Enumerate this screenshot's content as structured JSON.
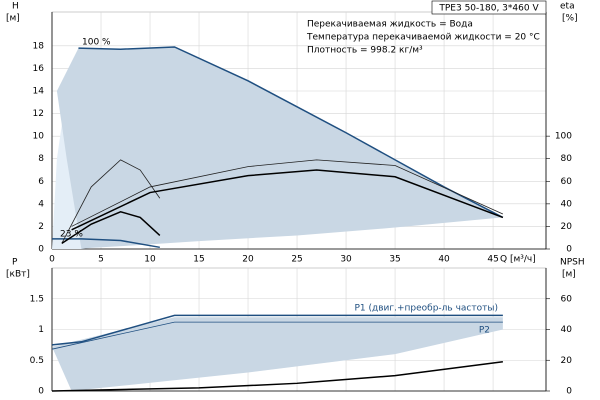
{
  "chart_data": [
    {
      "type": "line",
      "title": "TPE3 50-180, 3*460 V",
      "notes": [
        "Перекачиваемая жидкость = Вода",
        "Температура перекачиваемой жидкости = 20 °C",
        "Плотность = 998.2 кг/м³"
      ],
      "ylabel": "H",
      "yunit": "[м]",
      "y2label": "eta",
      "y2unit": "[%]",
      "xlabel": "Q [м³/ч]",
      "xlim": [
        0,
        50.4
      ],
      "xticks": [
        0,
        5,
        10,
        15,
        20,
        25,
        30,
        35,
        40,
        45
      ],
      "ylim": [
        0,
        21
      ],
      "yticks": [
        0,
        2,
        4,
        6,
        8,
        10,
        12,
        14,
        16,
        18
      ],
      "y2lim": [
        0,
        210
      ],
      "y2ticks": [
        0,
        20,
        40,
        60,
        80,
        100
      ],
      "grid": true,
      "annotations": [
        "100 %",
        "23 %"
      ],
      "areas": [
        {
          "color": "#e4eef7",
          "x": [
            0,
            0.5,
            1.5,
            2.7,
            4,
            3
          ],
          "y": [
            0,
            8,
            14,
            17.8,
            17.8,
            0
          ]
        },
        {
          "color": "#c9d7e4",
          "x": [
            2.7,
            7,
            12.5,
            20,
            30,
            40,
            46,
            35,
            25,
            15,
            8,
            4,
            3,
            1.5,
            0.5
          ],
          "y": [
            17.8,
            17.7,
            17.9,
            14.9,
            10.3,
            5.5,
            2.8,
            1.9,
            1.2,
            0.7,
            0.3,
            0.1,
            0,
            8,
            14
          ]
        }
      ],
      "series": [
        {
          "color": "#1f4f80",
          "width": 1.5,
          "x": [
            2.7,
            7,
            12.5,
            20,
            30,
            40,
            46
          ],
          "values": [
            17.8,
            17.7,
            17.9,
            14.9,
            10.3,
            5.5,
            2.8
          ]
        },
        {
          "color": "#1f4f80",
          "width": 1.5,
          "x": [
            0,
            3,
            7,
            11
          ],
          "values": [
            0.9,
            0.9,
            0.75,
            0.15
          ]
        },
        {
          "color": "#222222",
          "width": 0.8,
          "axis": "y2",
          "x": [
            1,
            4,
            7,
            9,
            11
          ],
          "values": [
            5,
            55,
            79,
            70,
            45
          ]
        },
        {
          "color": "#000000",
          "width": 1.5,
          "axis": "y2",
          "x": [
            1,
            4,
            7,
            9,
            11
          ],
          "values": [
            5,
            22,
            33,
            28,
            12
          ]
        },
        {
          "color": "#222222",
          "width": 0.8,
          "axis": "y2",
          "x": [
            2,
            10,
            20,
            27,
            35,
            46
          ],
          "values": [
            20,
            55,
            73,
            79,
            74,
            31
          ]
        },
        {
          "color": "#000000",
          "width": 1.5,
          "axis": "y2",
          "x": [
            2,
            10,
            20,
            27,
            35,
            46
          ],
          "values": [
            17,
            50,
            65,
            70,
            64,
            28
          ]
        }
      ]
    },
    {
      "type": "line",
      "ylabel": "P",
      "yunit": "[кВт]",
      "y2label": "NPSH",
      "y2unit": "[м]",
      "xlim": [
        0,
        50.4
      ],
      "xticks": [
        0,
        5,
        10,
        15,
        20,
        25,
        30,
        35,
        40,
        45
      ],
      "ylim": [
        0,
        2
      ],
      "yticks": [
        0,
        0.5,
        1,
        1.5
      ],
      "y2lim": [
        0,
        80
      ],
      "y2ticks": [
        0,
        20,
        40,
        60
      ],
      "grid": true,
      "areas": [
        {
          "color": "#c9d7e4",
          "x": [
            0,
            12.5,
            46,
            46,
            35,
            20,
            5,
            2
          ],
          "y": [
            0.72,
            1.2,
            1.2,
            1.0,
            0.6,
            0.3,
            0.05,
            0
          ]
        }
      ],
      "series": [
        {
          "name": "P1 (двиг.+преобр-ль частоты)",
          "color": "#1f4f80",
          "width": 1.5,
          "x": [
            0,
            3,
            12.5,
            46
          ],
          "values": [
            0.75,
            0.8,
            1.23,
            1.23
          ]
        },
        {
          "name": "P2",
          "color": "#1f4f80",
          "width": 0.8,
          "x": [
            0,
            12.5,
            46
          ],
          "values": [
            0.68,
            1.12,
            1.12
          ]
        },
        {
          "color": "#000000",
          "width": 1.5,
          "axis": "y2",
          "x": [
            0,
            15,
            25,
            35,
            46
          ],
          "values": [
            0,
            2,
            5,
            10,
            19
          ]
        }
      ]
    }
  ]
}
